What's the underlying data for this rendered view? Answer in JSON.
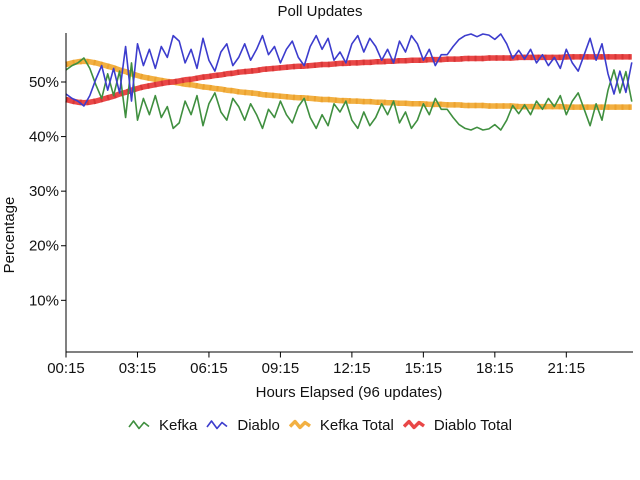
{
  "chart_data": {
    "type": "line",
    "title": "Poll Updates",
    "xlabel": "Hours Elapsed (96 updates)",
    "ylabel": "Percentage",
    "x_tick_labels": [
      "00:15",
      "03:15",
      "06:15",
      "09:15",
      "12:15",
      "15:15",
      "18:15",
      "21:15"
    ],
    "x_tick_step": 12,
    "y_tick_labels": [
      "10%",
      "20%",
      "30%",
      "40%",
      "50%"
    ],
    "ylim": [
      0,
      59
    ],
    "points_per_series": 96,
    "grid": false,
    "legend_position": "bottom",
    "axis_color": "#000000",
    "text_color": "#111111",
    "background": "#ffffff",
    "series": [
      {
        "name": "Kefka",
        "color": "#3f8f3f",
        "width": 1.6,
        "style": "thin",
        "values": [
          52.2,
          53.0,
          53.5,
          54.4,
          52.5,
          49.5,
          47.0,
          51.5,
          47.5,
          52.0,
          43.5,
          53.5,
          43.0,
          47.0,
          44.0,
          47.5,
          43.5,
          45.5,
          41.5,
          42.5,
          46.5,
          44.0,
          47.5,
          42.0,
          46.0,
          48.0,
          44.5,
          43.0,
          47.0,
          45.5,
          43.0,
          46.0,
          44.0,
          41.5,
          45.0,
          43.5,
          46.5,
          44.0,
          42.5,
          45.5,
          47.0,
          43.5,
          41.5,
          44.0,
          42.0,
          46.0,
          44.5,
          46.5,
          43.0,
          41.5,
          44.5,
          42.0,
          43.5,
          46.0,
          44.0,
          46.5,
          42.5,
          44.5,
          41.5,
          43.0,
          46.0,
          44.0,
          47.0,
          45.0,
          45.0,
          43.5,
          42.2,
          41.5,
          41.2,
          41.7,
          41.2,
          41.4,
          42.2,
          41.2,
          43.0,
          45.7,
          44.2,
          45.8,
          44.0,
          46.5,
          45.0,
          47.0,
          45.5,
          47.5,
          44.0,
          46.5,
          48.0,
          45.0,
          42.0,
          46.0,
          43.0,
          48.5,
          52.2,
          48.0,
          51.9,
          46.4
        ]
      },
      {
        "name": "Diablo",
        "color": "#3c3ccd",
        "width": 1.6,
        "style": "thin",
        "values": [
          47.8,
          47.0,
          46.5,
          45.6,
          47.5,
          50.5,
          53.0,
          48.5,
          52.5,
          48.0,
          56.5,
          46.5,
          57.0,
          53.0,
          56.0,
          52.5,
          56.5,
          54.5,
          58.5,
          57.5,
          53.5,
          56.0,
          52.5,
          58.0,
          54.0,
          52.0,
          55.5,
          57.0,
          53.0,
          54.5,
          57.0,
          54.0,
          56.0,
          58.5,
          55.0,
          56.5,
          53.5,
          56.0,
          57.5,
          54.5,
          53.0,
          56.5,
          58.5,
          56.0,
          58.0,
          54.0,
          55.5,
          53.5,
          57.0,
          58.5,
          55.5,
          58.0,
          56.5,
          54.0,
          56.0,
          53.5,
          57.5,
          55.5,
          58.5,
          57.0,
          54.0,
          56.0,
          53.0,
          55.0,
          55.0,
          56.5,
          57.8,
          58.5,
          58.8,
          58.3,
          58.8,
          58.6,
          57.8,
          58.8,
          57.0,
          54.3,
          55.8,
          54.2,
          56.0,
          53.5,
          55.0,
          53.0,
          54.5,
          52.5,
          56.0,
          53.5,
          52.0,
          55.0,
          58.0,
          54.0,
          57.0,
          51.5,
          47.8,
          52.0,
          48.1,
          53.6
        ]
      },
      {
        "name": "Kefka Total",
        "color": "#f2b042",
        "dash_color": "#eca22e",
        "width": 5.5,
        "style": "thick",
        "values": [
          53.2,
          53.5,
          53.7,
          53.8,
          53.7,
          53.5,
          53.2,
          52.9,
          52.6,
          52.2,
          51.9,
          51.5,
          51.2,
          50.9,
          50.7,
          50.5,
          50.3,
          50.1,
          50.0,
          49.8,
          49.6,
          49.5,
          49.3,
          49.1,
          49.0,
          48.8,
          48.7,
          48.5,
          48.4,
          48.2,
          48.1,
          48.0,
          47.9,
          47.7,
          47.6,
          47.5,
          47.4,
          47.3,
          47.2,
          47.1,
          47.1,
          47.0,
          46.9,
          46.8,
          46.8,
          46.7,
          46.6,
          46.6,
          46.5,
          46.5,
          46.4,
          46.4,
          46.3,
          46.3,
          46.2,
          46.2,
          46.1,
          46.1,
          46.0,
          46.0,
          46.0,
          45.9,
          45.9,
          45.9,
          45.8,
          45.8,
          45.8,
          45.7,
          45.7,
          45.7,
          45.7,
          45.6,
          45.6,
          45.6,
          45.6,
          45.6,
          45.5,
          45.5,
          45.5,
          45.5,
          45.5,
          45.5,
          45.5,
          45.5,
          45.4,
          45.4,
          45.4,
          45.4,
          45.4,
          45.4,
          45.4,
          45.4,
          45.4,
          45.4,
          45.4,
          45.4
        ]
      },
      {
        "name": "Diablo Total",
        "color": "#e94747",
        "dash_color": "#d73636",
        "width": 5.5,
        "style": "thick",
        "values": [
          46.8,
          46.5,
          46.3,
          46.2,
          46.3,
          46.5,
          46.8,
          47.1,
          47.4,
          47.8,
          48.1,
          48.5,
          48.8,
          49.1,
          49.3,
          49.5,
          49.7,
          49.9,
          50.0,
          50.2,
          50.4,
          50.5,
          50.7,
          50.9,
          51.0,
          51.2,
          51.3,
          51.5,
          51.6,
          51.8,
          51.9,
          52.0,
          52.1,
          52.3,
          52.4,
          52.5,
          52.6,
          52.7,
          52.8,
          52.9,
          52.9,
          53.0,
          53.1,
          53.2,
          53.2,
          53.3,
          53.4,
          53.4,
          53.5,
          53.5,
          53.6,
          53.6,
          53.7,
          53.7,
          53.8,
          53.8,
          53.9,
          53.9,
          54.0,
          54.0,
          54.0,
          54.1,
          54.1,
          54.1,
          54.2,
          54.2,
          54.2,
          54.3,
          54.3,
          54.3,
          54.3,
          54.4,
          54.4,
          54.4,
          54.4,
          54.4,
          54.5,
          54.5,
          54.5,
          54.5,
          54.5,
          54.5,
          54.5,
          54.5,
          54.6,
          54.6,
          54.6,
          54.6,
          54.6,
          54.6,
          54.6,
          54.6,
          54.6,
          54.6,
          54.6,
          54.6
        ]
      }
    ]
  }
}
